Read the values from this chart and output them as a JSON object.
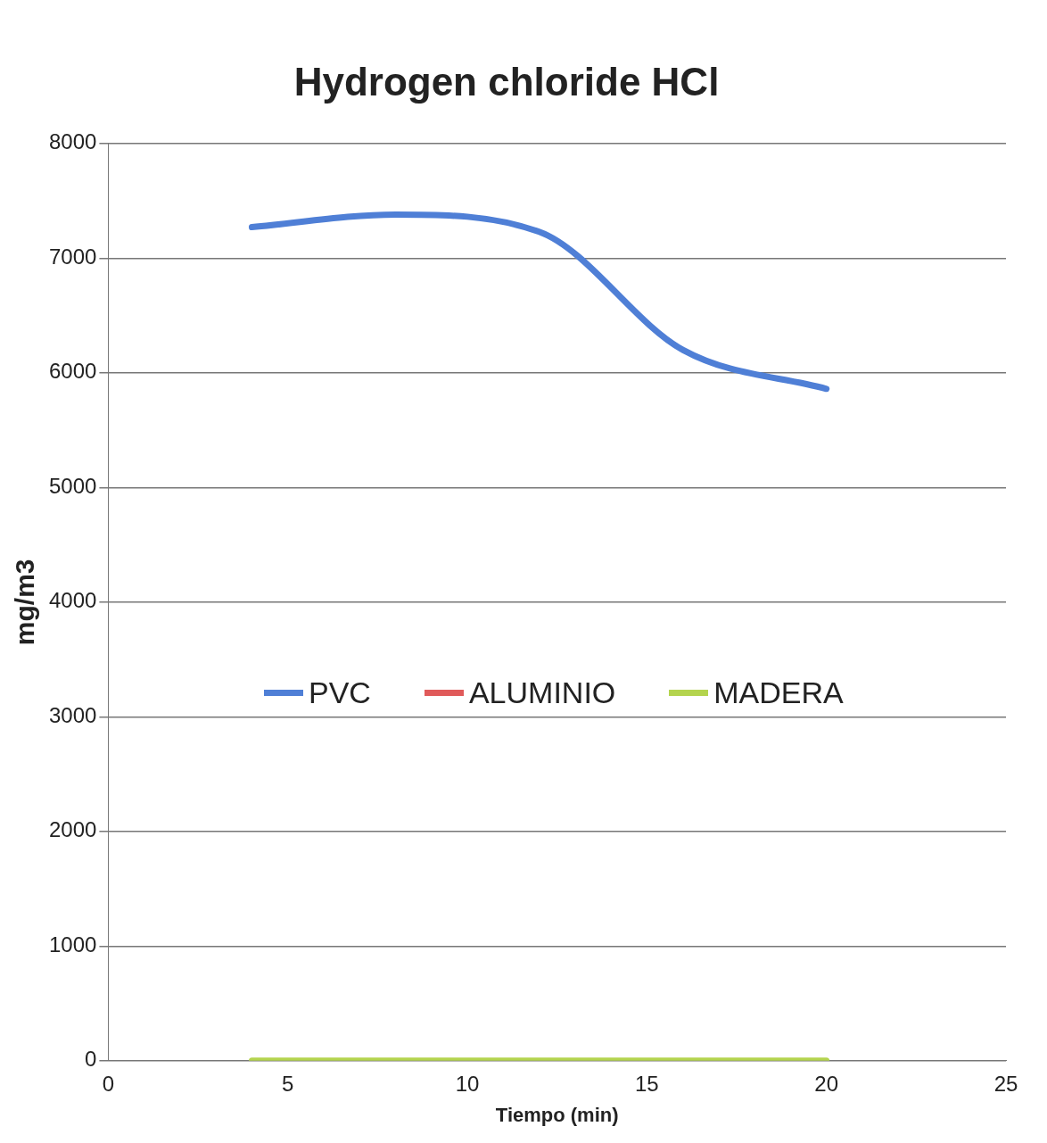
{
  "chart_data": {
    "type": "line",
    "title": "Hydrogen chloride HCl",
    "xlabel": "Tiempo (min)",
    "ylabel": "mg/m3",
    "x": [
      4,
      8,
      12,
      16,
      20
    ],
    "series": [
      {
        "name": "PVC",
        "color": "#4f7fd6",
        "values": [
          7270,
          7380,
          7230,
          6200,
          5860
        ]
      },
      {
        "name": "ALUMINIO",
        "color": "#e05a5a",
        "values": [
          null,
          null,
          null,
          null,
          null
        ]
      },
      {
        "name": "MADERA",
        "color": "#b4d44e",
        "values": [
          0,
          0,
          0,
          0,
          0
        ]
      }
    ],
    "xlim": [
      0,
      25
    ],
    "xticks": [
      0,
      5,
      10,
      15,
      20,
      25
    ],
    "ylim": [
      0,
      8000
    ],
    "yticks": [
      0,
      1000,
      2000,
      3000,
      4000,
      5000,
      6000,
      7000,
      8000
    ],
    "grid": "y",
    "legend": "center",
    "marker": "none",
    "line_style": "solid"
  }
}
